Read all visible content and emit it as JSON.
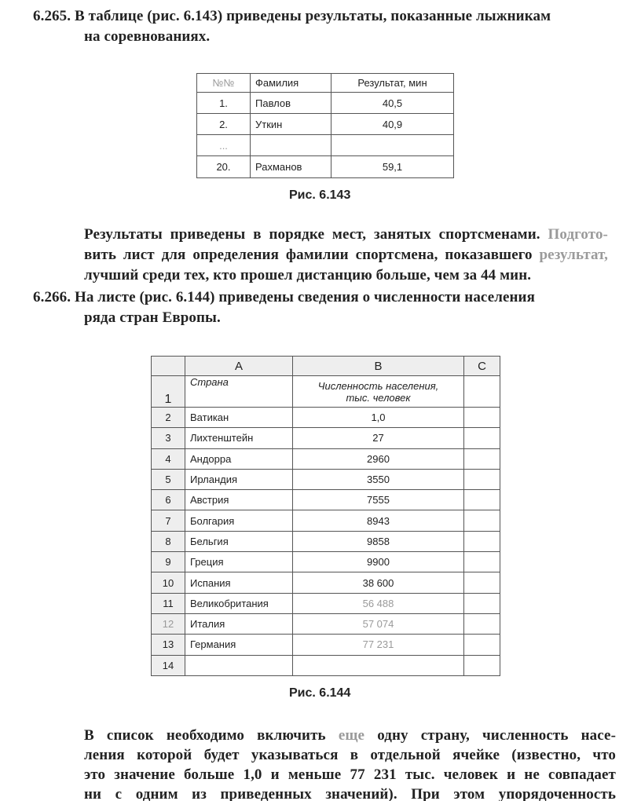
{
  "problem_265": {
    "number": "6.265.",
    "intro_line1": "В таблице (рис. 6.143) приведены результаты, показанные лыжникам",
    "intro_line2": "на соревнованиях.",
    "table": {
      "headers": [
        "№№",
        "Фамилия",
        "Результат, мин"
      ],
      "rows": [
        [
          "1.",
          "Павлов",
          "40,5"
        ],
        [
          "2.",
          "Уткин",
          "40,9"
        ],
        [
          "...",
          "",
          ""
        ],
        [
          "20.",
          "Рахманов",
          "59,1"
        ]
      ]
    },
    "caption": "Рис. 6.143",
    "task_line1a": "Результаты приведены в порядке мест, занятых спортсменами.",
    "task_line1b": "Подгото-",
    "task_line2a": "вить лист для определения фамилии спортсмена, показавшего",
    "task_line2b": "результат,",
    "task_line3": "лучший среди тех, кто прошел дистанцию больше, чем за 44 мин."
  },
  "problem_266": {
    "number": "6.266.",
    "intro_line1": "На листе (рис. 6.144) приведены сведения о численности населения",
    "intro_line2": "ряда стран Европы.",
    "sheet": {
      "columns": [
        "A",
        "B",
        "C"
      ],
      "header_row": {
        "num": "1",
        "a": "Страна",
        "b1": "Численность населения,",
        "b2": "тыс. человек"
      },
      "rows": [
        [
          "2",
          "Ватикан",
          "1,0"
        ],
        [
          "3",
          "Лихтенштейн",
          "27"
        ],
        [
          "4",
          "Андорра",
          "2960"
        ],
        [
          "5",
          "Ирландия",
          "3550"
        ],
        [
          "6",
          "Австрия",
          "7555"
        ],
        [
          "7",
          "Болгария",
          "8943"
        ],
        [
          "8",
          "Бельгия",
          "9858"
        ],
        [
          "9",
          "Греция",
          "9900"
        ],
        [
          "10",
          "Испания",
          "38 600"
        ],
        [
          "11",
          "Великобритания",
          "56 488"
        ],
        [
          "12",
          "Италия",
          "57 074"
        ],
        [
          "13",
          "Германия",
          "77 231"
        ],
        [
          "14",
          "",
          ""
        ]
      ]
    },
    "caption": "Рис. 6.144",
    "text_line1a": "В список необходимо включить",
    "text_line1b": "еще",
    "text_line1c": "одну страну, численность насе-",
    "text_line2": "ления которой будет указываться в отдельной ячейке (известно, что",
    "text_line3": "это значение больше 1,0 и меньше 77 231 тыс. человек и не совпадает",
    "text_line4": "ни с одним из приведенных значений). При этом упорядоченность"
  }
}
